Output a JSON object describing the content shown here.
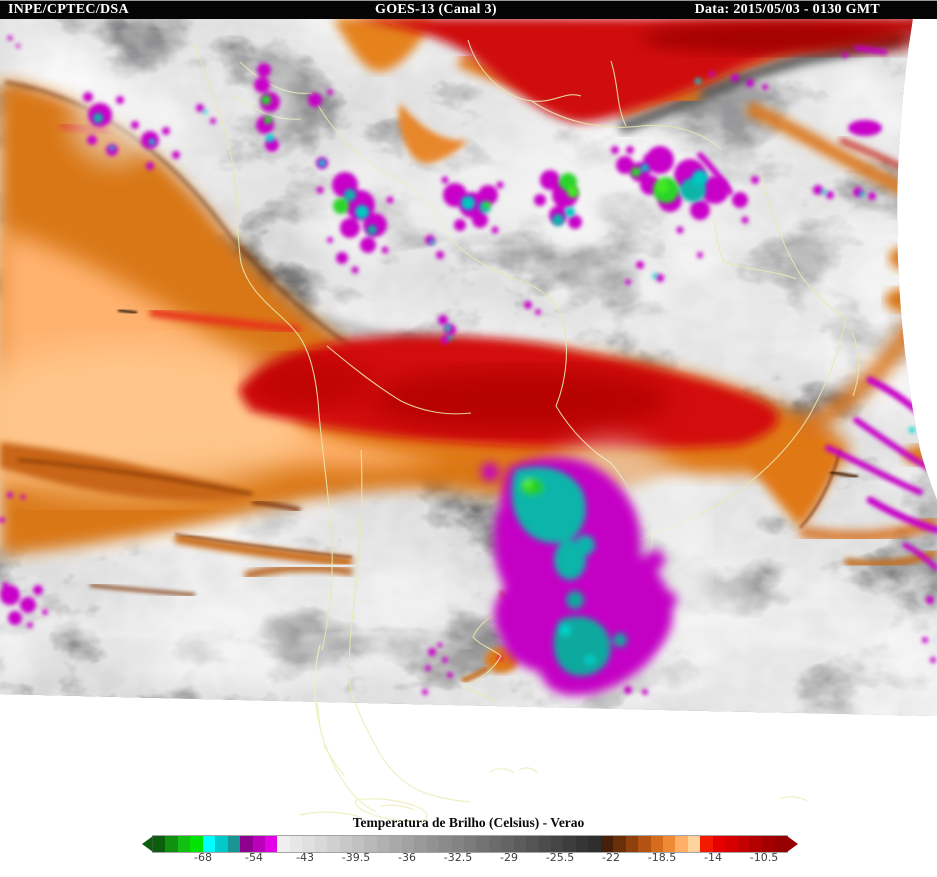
{
  "header": {
    "left": "INPE/CPTEC/DSA",
    "center": "GOES-13 (Canal 3)",
    "right": "Data: 2015/05/03 - 0130 GMT",
    "bg_color": "#050505",
    "text_color": "#ffffff"
  },
  "colorbar": {
    "title": "Temperatura de Brilho (Celsius) - Verao",
    "ticks": [
      "-68",
      "-54",
      "-43",
      "-39.5",
      "-36",
      "-32.5",
      "-29",
      "-25.5",
      "-22",
      "-18.5",
      "-14",
      "-10.5"
    ],
    "left_arrow_color": "#0b5e0b",
    "right_arrow_color": "#970000",
    "segments": [
      "#0b5e0b",
      "#109110",
      "#13bf13",
      "#00e400",
      "#00ffff",
      "#00c9c9",
      "#199595",
      "#8f008f",
      "#bb00bb",
      "#e400e4",
      "#efefef",
      "#e7e7e7",
      "#e0e0e0",
      "#d8d8d8",
      "#d0d0d0",
      "#c8c8c8",
      "#c1c1c1",
      "#b9b9b9",
      "#b1b1b1",
      "#a9a9a9",
      "#a2a2a2",
      "#9a9a9a",
      "#929292",
      "#8a8a8a",
      "#838383",
      "#7b7b7b",
      "#737373",
      "#6b6b6b",
      "#646464",
      "#5c5c5c",
      "#545454",
      "#4c4c4c",
      "#454545",
      "#3d3d3d",
      "#353535",
      "#2e2e2e",
      "#46200a",
      "#693008",
      "#8f400c",
      "#b35211",
      "#d66a1d",
      "#ee8a33",
      "#ffb066",
      "#ffd39c",
      "#f31a00",
      "#e80000",
      "#d60000",
      "#c40000",
      "#b30000",
      "#a40000",
      "#970000"
    ]
  },
  "map": {
    "border_color": "#e8e8ae",
    "cold_storm_colors": {
      "magenta": "#c800c8",
      "cyan": "#0cb4aa",
      "green": "#2ad42a"
    },
    "warm_colors": {
      "orange": "#d97717",
      "peach": "#ffb26e",
      "red": "#d30f0f"
    }
  }
}
